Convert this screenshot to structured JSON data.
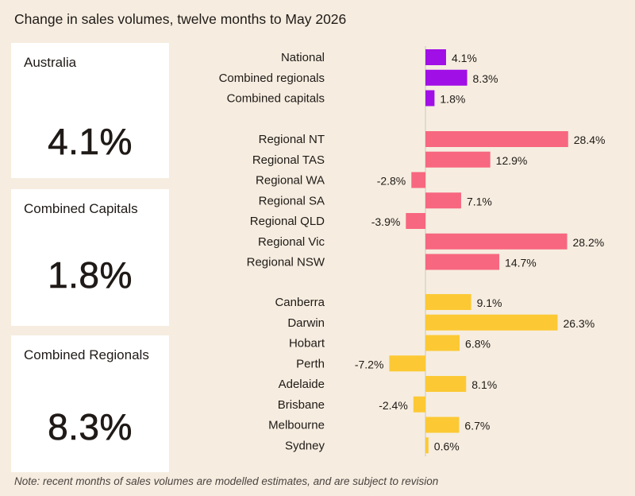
{
  "title": "Change in sales volumes, twelve months to May 2026",
  "note": "Note: recent months of sales volumes are modelled estimates, and are subject to revision",
  "cards": [
    {
      "label": "Australia",
      "value": "4.1%"
    },
    {
      "label": "Combined Capitals",
      "value": "1.8%"
    },
    {
      "label": "Combined Regionals",
      "value": "8.3%"
    }
  ],
  "colors": {
    "summary": "#a00fe6",
    "regional": "#f7677f",
    "capital": "#fcc935",
    "background": "#f6ede0",
    "card": "#ffffff"
  },
  "chart_data": {
    "type": "bar",
    "orientation": "horizontal",
    "title": "Change in sales volumes, twelve months to May 2026",
    "unit": "%",
    "groups": [
      {
        "color": "#a00fe6",
        "categories": [
          "National",
          "Combined regionals",
          "Combined capitals"
        ],
        "values": [
          4.1,
          8.3,
          1.8
        ]
      },
      {
        "color": "#f7677f",
        "categories": [
          "Regional NT",
          "Regional TAS",
          "Regional WA",
          "Regional SA",
          "Regional QLD",
          "Regional Vic",
          "Regional NSW"
        ],
        "values": [
          28.4,
          12.9,
          -2.8,
          7.1,
          -3.9,
          28.2,
          14.7
        ]
      },
      {
        "color": "#fcc935",
        "categories": [
          "Canberra",
          "Darwin",
          "Hobart",
          "Perth",
          "Adelaide",
          "Brisbane",
          "Melbourne",
          "Sydney"
        ],
        "values": [
          9.1,
          26.3,
          6.8,
          -7.2,
          8.1,
          -2.4,
          6.7,
          0.6
        ]
      }
    ]
  }
}
